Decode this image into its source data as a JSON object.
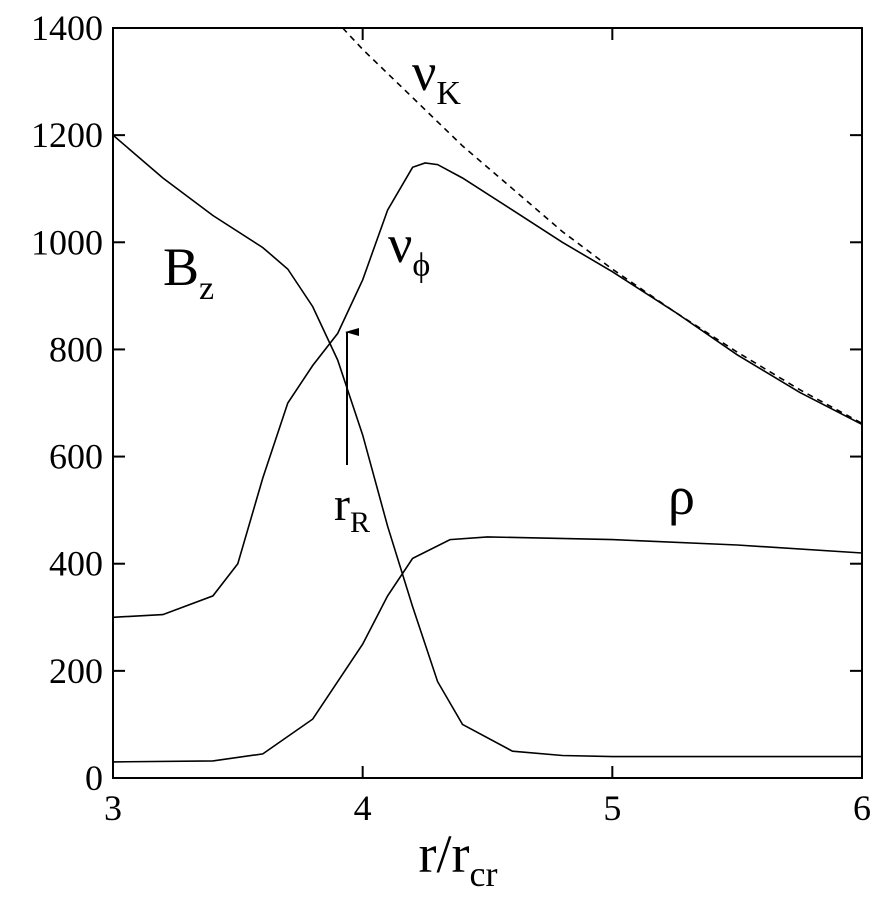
{
  "chart_data": {
    "type": "line",
    "xlabel": "r/r",
    "xlabel_sub": "cr",
    "xlim": [
      3,
      6
    ],
    "xticks": [
      3,
      4,
      5,
      6
    ],
    "ylim": [
      0,
      1400
    ],
    "yticks": [
      0,
      200,
      400,
      600,
      800,
      1000,
      1200,
      1400
    ],
    "annotation": "r",
    "annotation_sub": "R",
    "series": [
      {
        "name": "ν",
        "name_sub": "K",
        "color": "#000000",
        "dashed": true,
        "x": [
          3.92,
          4.0,
          4.2,
          4.4,
          4.6,
          4.8,
          5.0,
          5.25,
          5.5,
          5.75,
          6.0
        ],
        "values": [
          1400,
          1360,
          1270,
          1180,
          1100,
          1020,
          950,
          870,
          795,
          725,
          662
        ]
      },
      {
        "name": "ν",
        "name_sub": "ϕ",
        "color": "#000000",
        "dashed": false,
        "x": [
          3.0,
          3.2,
          3.4,
          3.5,
          3.6,
          3.7,
          3.8,
          3.9,
          4.0,
          4.1,
          4.2,
          4.25,
          4.3,
          4.4,
          4.6,
          4.8,
          5.0,
          5.25,
          5.5,
          5.75,
          6.0
        ],
        "values": [
          300,
          305,
          340,
          400,
          560,
          700,
          770,
          830,
          930,
          1060,
          1140,
          1148,
          1145,
          1120,
          1060,
          1000,
          945,
          870,
          790,
          720,
          660
        ]
      },
      {
        "name": "B",
        "name_sub": "z",
        "color": "#000000",
        "dashed": false,
        "x": [
          3.0,
          3.2,
          3.4,
          3.6,
          3.7,
          3.8,
          3.9,
          4.0,
          4.1,
          4.2,
          4.3,
          4.4,
          4.6,
          4.8,
          5.0,
          6.0
        ],
        "values": [
          1200,
          1120,
          1050,
          990,
          950,
          880,
          780,
          640,
          470,
          320,
          180,
          100,
          50,
          42,
          40,
          40
        ]
      },
      {
        "name": "ρ",
        "color": "#000000",
        "dashed": false,
        "x": [
          3.0,
          3.4,
          3.6,
          3.8,
          4.0,
          4.1,
          4.2,
          4.35,
          4.5,
          5.0,
          5.5,
          6.0
        ],
        "values": [
          30,
          32,
          45,
          110,
          250,
          340,
          410,
          445,
          450,
          445,
          435,
          420
        ]
      }
    ]
  }
}
